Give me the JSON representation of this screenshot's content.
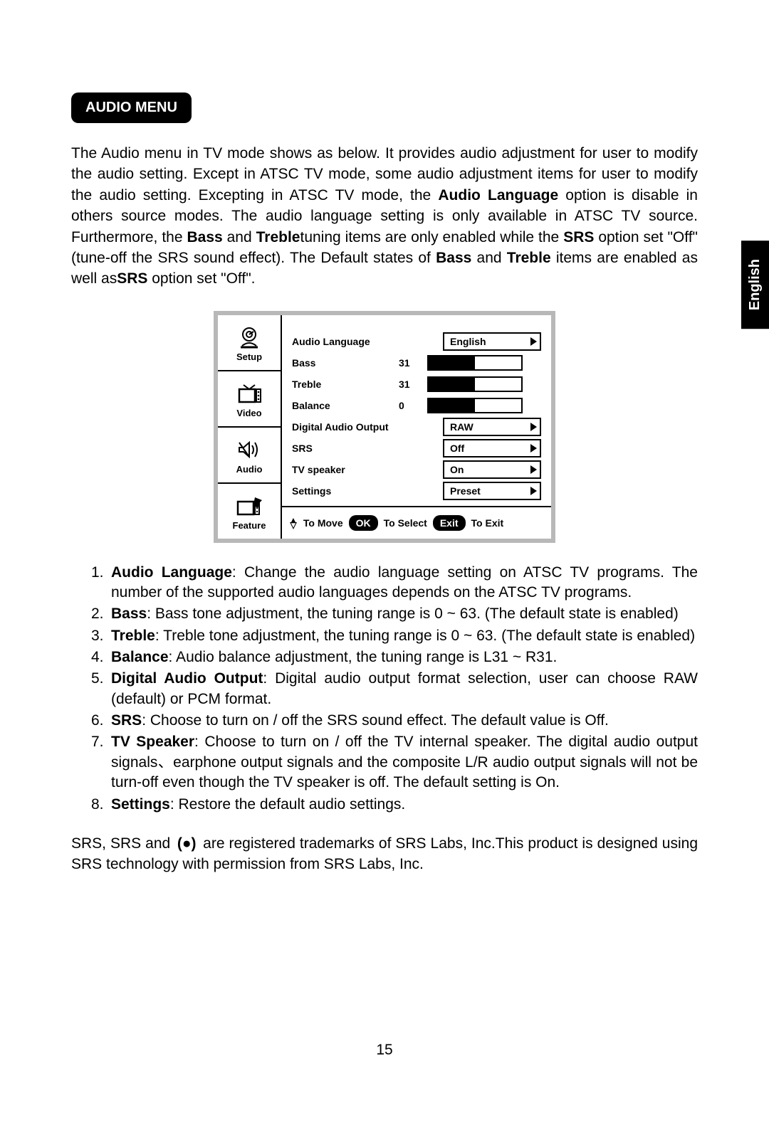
{
  "header": {
    "title": "AUDIO MENU"
  },
  "lang_tab": "English",
  "page_number": "15",
  "intro": {
    "parts": [
      {
        "t": "The Audio menu in TV mode shows as below. It provides audio adjustment for user to modify the audio setting. Except in ATSC TV mode, some audio adjustment items for user to modify the audio setting. Excepting in ATSC TV mode, the "
      },
      {
        "t": "Audio Language",
        "b": true
      },
      {
        "t": " option is disable in others source modes. The audio language setting is only available in ATSC TV source. Furthermore, the "
      },
      {
        "t": "Bass",
        "b": true
      },
      {
        "t": " and "
      },
      {
        "t": "Treble",
        "b": true
      },
      {
        "t": "tuning items are only enabled while the "
      },
      {
        "t": "SRS",
        "b": true
      },
      {
        "t": " option set \"Off\" (tune-off the SRS sound effect). The Default states of "
      },
      {
        "t": "Bass",
        "b": true
      },
      {
        "t": " and "
      },
      {
        "t": "Treble",
        "b": true
      },
      {
        "t": " items are enabled as well as"
      },
      {
        "t": "SRS",
        "b": true
      },
      {
        "t": " option set \"Off\"."
      }
    ]
  },
  "osd": {
    "sidebar": [
      {
        "label": "Setup",
        "icon": "setup"
      },
      {
        "label": "Video",
        "icon": "video"
      },
      {
        "label": "Audio",
        "icon": "audio"
      },
      {
        "label": "Feature",
        "icon": "feature"
      }
    ],
    "rows": [
      {
        "label": "Audio Language",
        "type": "select",
        "value": "English"
      },
      {
        "label": "Bass",
        "type": "slider",
        "value": 31,
        "max": 63,
        "fill_pct": 50
      },
      {
        "label": "Treble",
        "type": "slider",
        "value": 31,
        "max": 63,
        "fill_pct": 50
      },
      {
        "label": "Balance",
        "type": "slider",
        "value": 0,
        "max": 63,
        "fill_pct": 50
      },
      {
        "label": "Digital Audio Output",
        "type": "select",
        "value": "RAW"
      },
      {
        "label": "SRS",
        "type": "select",
        "value": "Off"
      },
      {
        "label": "TV speaker",
        "type": "select",
        "value": "On"
      },
      {
        "label": "Settings",
        "type": "select",
        "value": "Preset"
      }
    ],
    "footer": {
      "move": "To Move",
      "ok": "OK",
      "select": "To Select",
      "exit": "Exit",
      "toexit": "To Exit"
    }
  },
  "list": [
    {
      "n": "1.",
      "b": "Audio Language",
      "rest": ": Change the audio language setting on ATSC TV programs. The number of the supported audio languages depends on the ATSC TV programs."
    },
    {
      "n": "2.",
      "b": "Bass",
      "rest": ": Bass tone adjustment, the tuning range is 0 ~ 63. (The default state is enabled)"
    },
    {
      "n": "3.",
      "b": "Treble",
      "rest": ": Treble tone adjustment, the tuning range is 0 ~ 63. (The default state is enabled)"
    },
    {
      "n": "4.",
      "b": "Balance",
      "rest": ": Audio balance adjustment, the tuning range is L31 ~ R31."
    },
    {
      "n": "5.",
      "b": "Digital Audio Output",
      "rest": ": Digital audio output format selection, user can   choose RAW (default) or PCM format."
    },
    {
      "n": "6.",
      "b": "SRS",
      "rest": ": Choose to turn on / off the SRS sound effect. The default value is Off."
    },
    {
      "n": "7.",
      "b": "TV Speaker",
      "rest": ": Choose to turn on / off the TV internal speaker. The digital audio output signals、earphone output signals and the composite L/R audio output signals will not be turn-off even though the TV speaker is off. The default setting is On."
    },
    {
      "n": "8.",
      "b": "Settings",
      "rest": ": Restore the default audio settings."
    }
  ],
  "trademark": {
    "pre": "SRS, SRS and ",
    "post": " are registered trademarks of  SRS Labs, Inc.This product is designed using SRS technology with permission from SRS Labs, Inc."
  }
}
